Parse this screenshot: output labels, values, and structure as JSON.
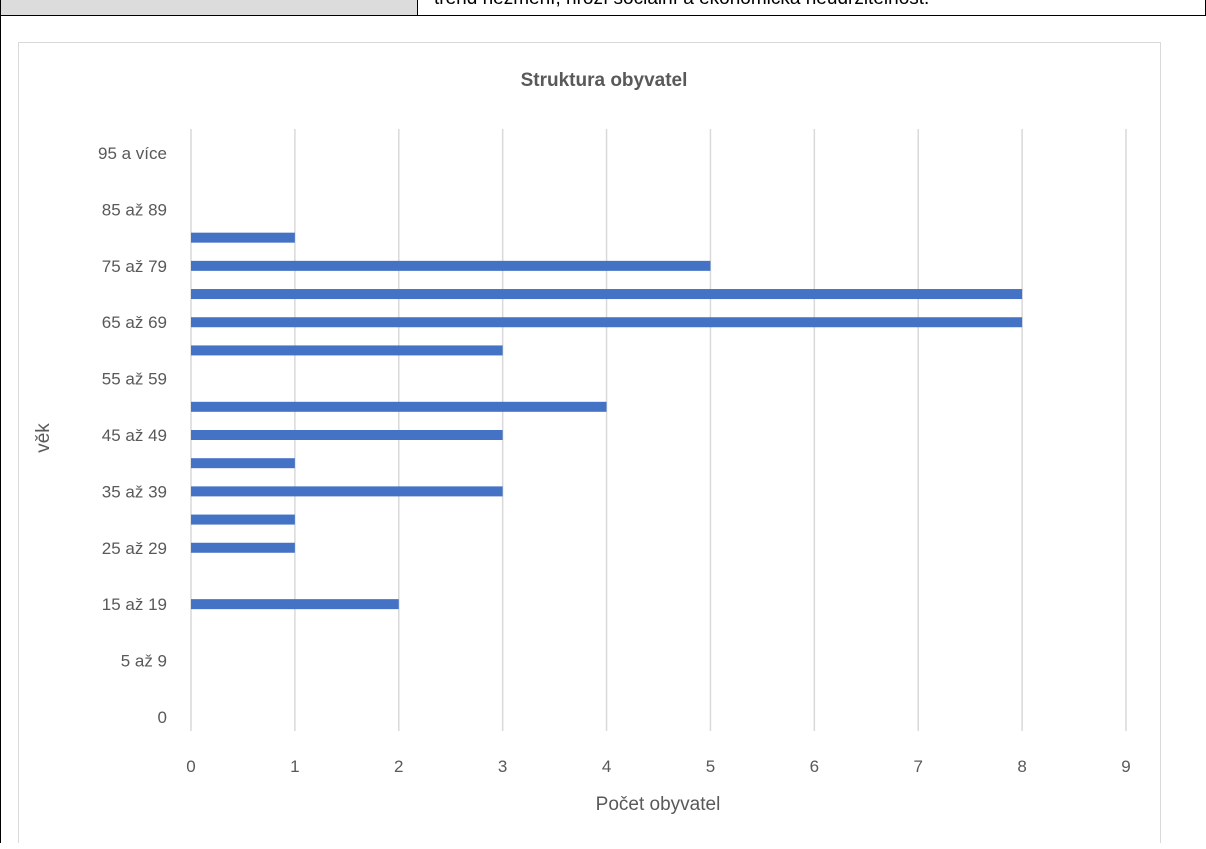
{
  "document": {
    "table_cell_text": "trend nezmění, hrozí sociální a ekonomická neudržitelnost."
  },
  "chart_data": {
    "type": "bar",
    "orientation": "horizontal",
    "title": "Struktura obyvatel",
    "xlabel": "Počet obyvatel",
    "ylabel": "věk",
    "xlim": [
      0,
      9
    ],
    "x_ticks": [
      "0",
      "1",
      "2",
      "3",
      "4",
      "5",
      "6",
      "7",
      "8",
      "9"
    ],
    "grid": "vertical",
    "categories": [
      "0",
      "",
      "5 až 9",
      "",
      "15 až 19",
      "",
      "25 až 29",
      "",
      "35 až 39",
      "",
      "45 až 49",
      "",
      "55 až 59",
      "",
      "65 až 69",
      "",
      "75 až 79",
      "",
      "85 až 89",
      "",
      "95 a více"
    ],
    "values": [
      0,
      0,
      0,
      0,
      2,
      0,
      1,
      1,
      3,
      1,
      3,
      4,
      0,
      3,
      8,
      8,
      5,
      1,
      0,
      0,
      0
    ],
    "bar_color": "#4472c4",
    "grid_color": "#d9d9d9"
  }
}
